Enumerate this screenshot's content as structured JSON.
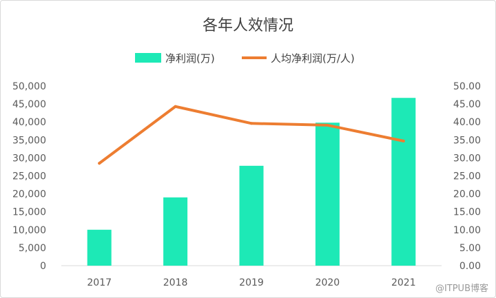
{
  "chart_data": {
    "type": "bar",
    "title": "各年人效情况",
    "categories": [
      "2017",
      "2018",
      "2019",
      "2020",
      "2021"
    ],
    "series": [
      {
        "name": "净利润(万)",
        "type": "bar",
        "axis": "left",
        "color": "#1de9b6",
        "values": [
          10000,
          19000,
          27800,
          39800,
          46700
        ]
      },
      {
        "name": "人均净利润(万/人)",
        "type": "line",
        "axis": "right",
        "color": "#ed7d31",
        "values": [
          28.5,
          44.3,
          39.6,
          39.1,
          34.7
        ]
      }
    ],
    "ylim_left": [
      0,
      50000
    ],
    "ylim_right": [
      0,
      50
    ],
    "yticks_left": [
      "0",
      "5,000",
      "10,000",
      "15,000",
      "20,000",
      "25,000",
      "30,000",
      "35,000",
      "40,000",
      "45,000",
      "50,000"
    ],
    "yticks_right": [
      "0.00",
      "5.00",
      "10.00",
      "15.00",
      "20.00",
      "25.00",
      "30.00",
      "35.00",
      "40.00",
      "45.00",
      "50.00"
    ],
    "grid": false,
    "legend_position": "top"
  },
  "watermark": "@ITPUB博客"
}
